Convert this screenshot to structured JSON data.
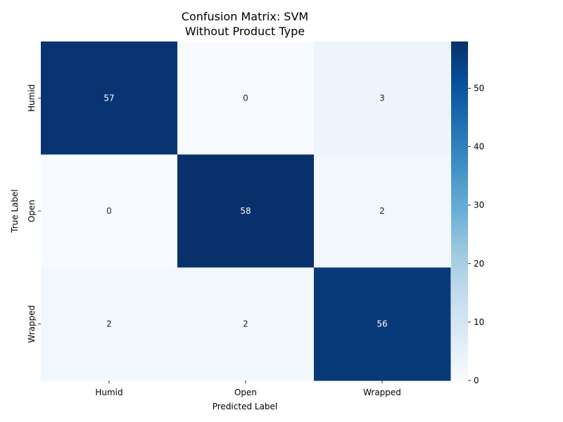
{
  "chart_data": {
    "type": "heatmap",
    "title_lines": [
      "Confusion Matrix: SVM",
      "Without Product Type"
    ],
    "xlabel": "Predicted Label",
    "ylabel": "True Label",
    "x_categories": [
      "Humid",
      "Open",
      "Wrapped"
    ],
    "y_categories": [
      "Humid",
      "Open",
      "Wrapped"
    ],
    "values": [
      [
        57,
        0,
        3
      ],
      [
        0,
        58,
        2
      ],
      [
        2,
        2,
        56
      ]
    ],
    "colorscale": "Blues",
    "vmin": 0,
    "vmax": 58,
    "colorbar_ticks": [
      0,
      10,
      20,
      30,
      40,
      50
    ],
    "grid": false
  }
}
